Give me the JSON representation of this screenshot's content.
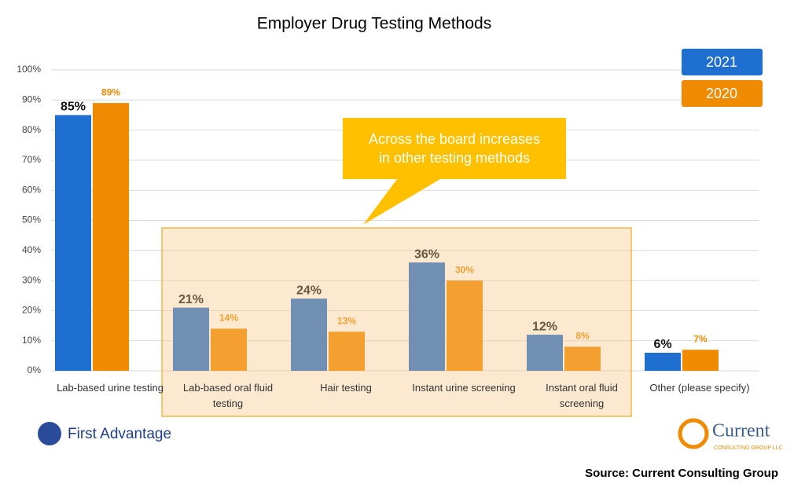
{
  "chart_data": {
    "type": "bar",
    "title": "Employer Drug Testing Methods",
    "categories": [
      "Lab-based urine testing",
      "Lab-based oral fluid testing",
      "Hair testing",
      "Instant urine screening",
      "Instant oral fluid screening",
      "Other (please specify)"
    ],
    "series": [
      {
        "name": "2021",
        "color": "#1f6fd1",
        "values": [
          85,
          21,
          24,
          36,
          12,
          6
        ],
        "value_labels": [
          "85%",
          "21%",
          "24%",
          "36%",
          "12%",
          "6%"
        ]
      },
      {
        "name": "2020",
        "color": "#f08a00",
        "values": [
          89,
          14,
          13,
          30,
          8,
          7
        ],
        "value_labels": [
          "89%",
          "14%",
          "13%",
          "30%",
          "8%",
          "7%"
        ]
      }
    ],
    "ylim": [
      0,
      100
    ],
    "yticks": [
      {
        "value": 0,
        "label": "0%"
      },
      {
        "value": 10,
        "label": "10%"
      },
      {
        "value": 20,
        "label": "20%"
      },
      {
        "value": 30,
        "label": "30%"
      },
      {
        "value": 40,
        "label": "40%"
      },
      {
        "value": 50,
        "label": "50%"
      },
      {
        "value": 60,
        "label": "60%"
      },
      {
        "value": 70,
        "label": "70%"
      },
      {
        "value": 80,
        "label": "80%"
      },
      {
        "value": 90,
        "label": "90%"
      },
      {
        "value": 100,
        "label": "100%"
      }
    ],
    "grid": true,
    "legend": "upper right",
    "annotation": [
      "Across the board increases",
      "in other testing methods"
    ],
    "logos": {
      "left": "First Advantage",
      "right": "Current",
      "right_sub": "CONSULTING GROUP LLC"
    },
    "source": "Source: Current Consulting Group"
  }
}
